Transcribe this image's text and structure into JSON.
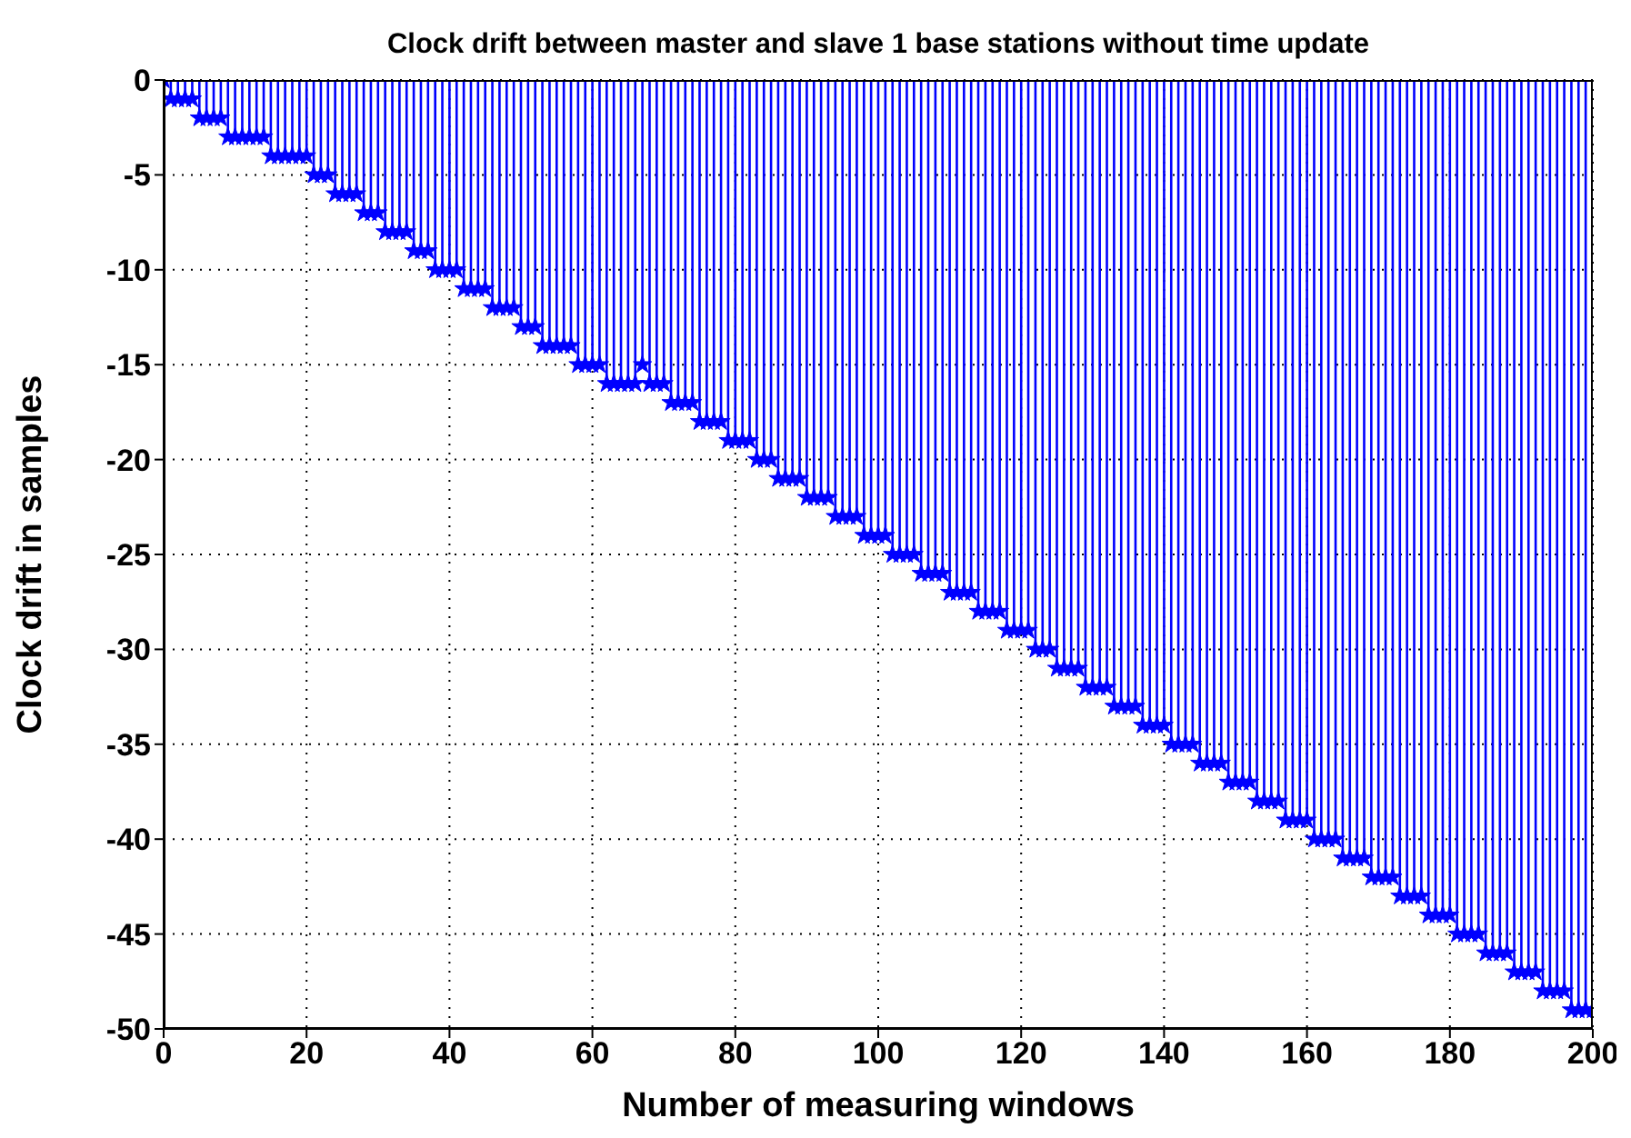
{
  "chart_data": {
    "type": "lollipop",
    "title": "Clock drift between master and slave 1 base stations without time update",
    "xlabel": "Number of measuring windows",
    "ylabel": "Clock drift in samples",
    "x": [
      0,
      1,
      2,
      3,
      4,
      5,
      6,
      7,
      8,
      9,
      10,
      11,
      12,
      13,
      14,
      15,
      16,
      17,
      18,
      19,
      20,
      21,
      22,
      23,
      24,
      25,
      26,
      27,
      28,
      29,
      30,
      31,
      32,
      33,
      34,
      35,
      36,
      37,
      38,
      39,
      40,
      41,
      42,
      43,
      44,
      45,
      46,
      47,
      48,
      49,
      50,
      51,
      52,
      53,
      54,
      55,
      56,
      57,
      58,
      59,
      60,
      61,
      62,
      63,
      64,
      65,
      66,
      67,
      68,
      69,
      70,
      71,
      72,
      73,
      74,
      75,
      76,
      77,
      78,
      79,
      80,
      81,
      82,
      83,
      84,
      85,
      86,
      87,
      88,
      89,
      90,
      91,
      92,
      93,
      94,
      95,
      96,
      97,
      98,
      99,
      100,
      101,
      102,
      103,
      104,
      105,
      106,
      107,
      108,
      109,
      110,
      111,
      112,
      113,
      114,
      115,
      116,
      117,
      118,
      119,
      120,
      121,
      122,
      123,
      124,
      125,
      126,
      127,
      128,
      129,
      130,
      131,
      132,
      133,
      134,
      135,
      136,
      137,
      138,
      139,
      140,
      141,
      142,
      143,
      144,
      145,
      146,
      147,
      148,
      149,
      150,
      151,
      152,
      153,
      154,
      155,
      156,
      157,
      158,
      159,
      160,
      161,
      162,
      163,
      164,
      165,
      166,
      167,
      168,
      169,
      170,
      171,
      172,
      173,
      174,
      175,
      176,
      177,
      178,
      179,
      180,
      181,
      182,
      183,
      184,
      185,
      186,
      187,
      188,
      189,
      190,
      191,
      192,
      193,
      194,
      195,
      196,
      197,
      198,
      199,
      200
    ],
    "values": [
      0,
      -1,
      -1,
      -1,
      -1,
      -2,
      -2,
      -2,
      -2,
      -3,
      -3,
      -3,
      -3,
      -3,
      -3,
      -4,
      -4,
      -4,
      -4,
      -4,
      -4,
      -5,
      -5,
      -5,
      -6,
      -6,
      -6,
      -6,
      -7,
      -7,
      -7,
      -8,
      -8,
      -8,
      -8,
      -9,
      -9,
      -9,
      -10,
      -10,
      -10,
      -10,
      -11,
      -11,
      -11,
      -11,
      -12,
      -12,
      -12,
      -12,
      -13,
      -13,
      -13,
      -14,
      -14,
      -14,
      -14,
      -14,
      -15,
      -15,
      -15,
      -15,
      -16,
      -16,
      -16,
      -16,
      -16,
      -15,
      -16,
      -16,
      -16,
      -17,
      -17,
      -17,
      -17,
      -18,
      -18,
      -18,
      -18,
      -19,
      -19,
      -19,
      -19,
      -20,
      -20,
      -20,
      -21,
      -21,
      -21,
      -21,
      -22,
      -22,
      -22,
      -22,
      -23,
      -23,
      -23,
      -23,
      -24,
      -24,
      -24,
      -24,
      -25,
      -25,
      -25,
      -25,
      -26,
      -26,
      -26,
      -26,
      -27,
      -27,
      -27,
      -27,
      -28,
      -28,
      -28,
      -28,
      -29,
      -29,
      -29,
      -29,
      -30,
      -30,
      -30,
      -31,
      -31,
      -31,
      -31,
      -32,
      -32,
      -32,
      -32,
      -33,
      -33,
      -33,
      -33,
      -34,
      -34,
      -34,
      -34,
      -35,
      -35,
      -35,
      -35,
      -36,
      -36,
      -36,
      -36,
      -37,
      -37,
      -37,
      -37,
      -38,
      -38,
      -38,
      -38,
      -39,
      -39,
      -39,
      -39,
      -40,
      -40,
      -40,
      -40,
      -41,
      -41,
      -41,
      -41,
      -42,
      -42,
      -42,
      -42,
      -43,
      -43,
      -43,
      -43,
      -44,
      -44,
      -44,
      -44,
      -45,
      -45,
      -45,
      -45,
      -46,
      -46,
      -46,
      -46,
      -47,
      -47,
      -47,
      -47,
      -48,
      -48,
      -48,
      -48,
      -49,
      -49,
      -49,
      -49
    ],
    "color": "#0000ff",
    "marker": "star",
    "grid": true,
    "xlim": [
      0,
      200
    ],
    "xticks": [
      0,
      20,
      40,
      60,
      80,
      100,
      120,
      140,
      160,
      180,
      200
    ],
    "ylim": [
      -50,
      0
    ],
    "yticks": [
      0,
      -5,
      -10,
      -15,
      -20,
      -25,
      -30,
      -35,
      -40,
      -45,
      -50
    ]
  }
}
